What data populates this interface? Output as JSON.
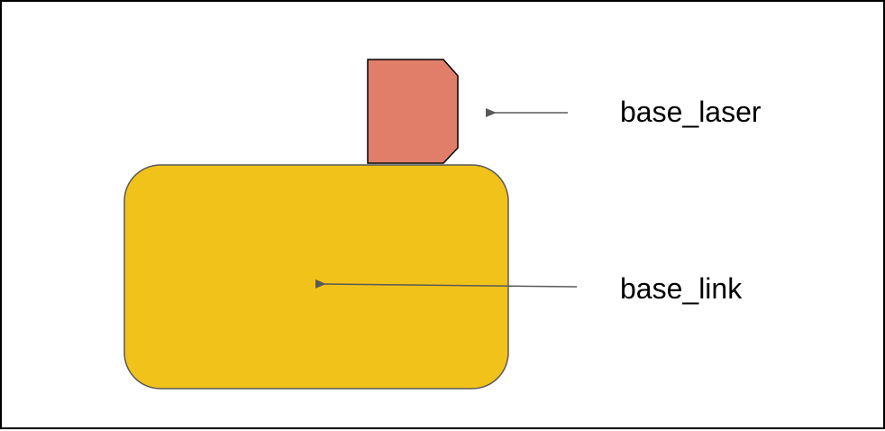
{
  "diagram": {
    "labels": {
      "laser": "base_laser",
      "link": "base_link"
    },
    "colors": {
      "base_link_fill": "#F1C21A",
      "base_laser_fill": "#E07E6A",
      "outline": "#595959",
      "arrow": "#595959",
      "frame": "#000000"
    }
  }
}
